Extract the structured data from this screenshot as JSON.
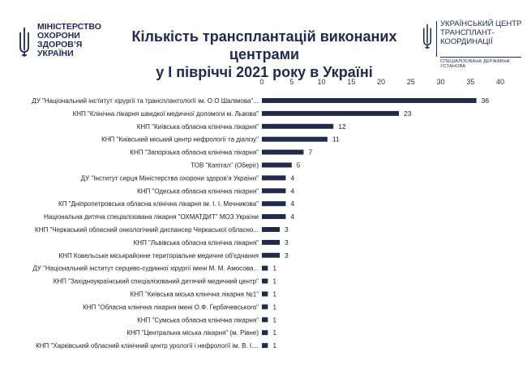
{
  "header": {
    "title_line1": "Кількість трансплантацій виконаних центрами",
    "title_line2": "у І півріччі 2021 року в Україні",
    "left_logo_text": "МІНІСТЕРСТВО\nОХОРОНИ\nЗДОРОВ’Я\nУКРАЇНИ",
    "right_logo_text": "УКРАЇНСЬКИЙ ЦЕНТР\nТРАНСПЛАНТ-\nКООРДИНАЦІЇ",
    "right_logo_sub": "СПЕЦІАЛІЗОВАНА ДЕРЖАВНА УСТАНОВА",
    "brand_color": "#1c2a55"
  },
  "chart_data": {
    "type": "bar",
    "orientation": "horizontal",
    "xlim": [
      0,
      40
    ],
    "xticks": [
      0,
      5,
      10,
      15,
      20,
      25,
      30,
      35,
      40
    ],
    "bar_color": "#1f2a4d",
    "grid": false,
    "categories": [
      "ДУ \"Національний інститут хірургії та трансплантології ім. О.О Шалімова\"...",
      "КНП \"Клінічна лікарня швидкої медичної допомоги м. Львова\"",
      "КНП \"Київська обласна клінічна лікарня\"",
      "КНП \"Київський міський центр нефрології та діалізу\"",
      "КНП \"Запорізька обласна клінічна лікарня\"",
      "ТОВ \"Капітал\" (Оберіг)",
      "ДУ \"Інститут серця Міністерства охорони здоров'я України\"",
      "КНП \"Одеська обласна клінічна лікарня\"",
      "КП \"Дніпропетровська обласна клінічна лікарня ім. І. І. Мечникова\"",
      "Національна дитяча спеціалізована лікарня \"ОХМАТДИТ\" МОЗ України",
      "КНП \"Черкаський обласний онкологічний диспансер Черкаської обласно...",
      "КНП \"Львівська обласна клінічна лікарня\"",
      "КНП Ковельське міськрайонне територіальне медичне об'єднання",
      "ДУ \"Національний інститут серцево-судинної хірургії імені М. М. Амосова...",
      "КНП \"Західноукраїнський спеціалізований дитячий медичний центр\"",
      "КНП \"Київська міська клінічна лікарня №1\"",
      "КНП \"Обласна клінічна лікарня імені О.Ф. Гербачевського\"",
      "КНП \"Сумська обласна клінічна лікарня\"",
      "КНП \"Центральна міська лікарня\" (м. Рівне)",
      "КНП \"Харківський обласний клінічний центр урології і нефрології ім. В. І...."
    ],
    "values": [
      36,
      23,
      12,
      11,
      7,
      5,
      4,
      4,
      4,
      4,
      3,
      3,
      3,
      1,
      1,
      1,
      1,
      1,
      1,
      1
    ]
  }
}
